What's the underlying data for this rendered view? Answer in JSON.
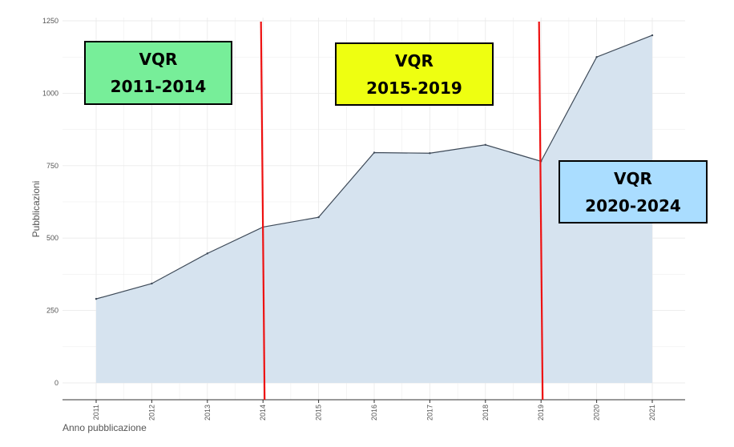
{
  "chart_data": {
    "type": "area",
    "xlabel": "Anno pubblicazione",
    "ylabel": "Pubblicazioni",
    "x": [
      2011,
      2012,
      2013,
      2014,
      2015,
      2016,
      2017,
      2018,
      2019,
      2020,
      2021
    ],
    "x_tick_labels": [
      "2011",
      "2012",
      "2013",
      "2014",
      "2015",
      "2016",
      "2017",
      "2018",
      "2019",
      "2020",
      "2021"
    ],
    "y_ticks": [
      0,
      250,
      500,
      750,
      1000,
      1250
    ],
    "y_tick_labels": [
      "0",
      "250",
      "500",
      "750",
      "1000",
      "1250"
    ],
    "ylim": [
      0,
      1250
    ],
    "series": [
      {
        "values": [
          290,
          343,
          447,
          538,
          572,
          795,
          793,
          822,
          765,
          1125,
          1200
        ]
      }
    ],
    "grid": true,
    "annotations": {
      "period_boundaries": [
        2014,
        2019
      ],
      "periods": [
        {
          "title": "VQR",
          "years": "2011-2014",
          "color": "#77ee99"
        },
        {
          "title": "VQR",
          "years": "2015-2019",
          "color": "#eeff11"
        },
        {
          "title": "VQR",
          "years": "2020-2024",
          "color": "#aaddff"
        }
      ]
    }
  },
  "colors": {
    "area_fill": "#d6e3ef",
    "line": "#3e4a58",
    "boundary": "#ee1111",
    "grid": "#ebebeb"
  }
}
